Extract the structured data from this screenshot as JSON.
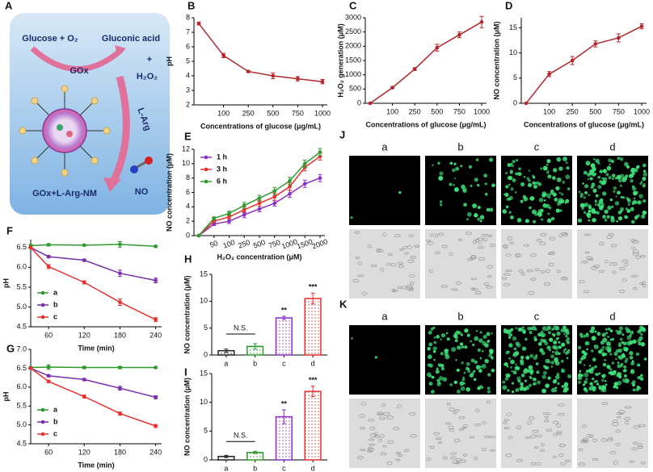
{
  "panel_a": {
    "panel": "A",
    "glucose": "Glucose + O₂",
    "gluconic": "Gluconic acid",
    "enzyme": "GOx",
    "plus": "+",
    "h2o2": "H₂O₂",
    "larg": "L-Arg",
    "nanomotor": "GOx+L-Arg-NM",
    "no": "NO"
  },
  "chart_data": [
    {
      "panel": "B",
      "type": "line",
      "categories": [
        null,
        "100",
        "250",
        "500",
        "750",
        "1000"
      ],
      "series": [
        {
          "color": "#b5262b",
          "values": [
            7.6,
            5.4,
            4.3,
            4.0,
            3.8,
            3.6
          ],
          "errors": [
            0.1,
            0.15,
            0.05,
            0.2,
            0.15,
            0.15
          ]
        }
      ],
      "ylim": [
        2,
        8
      ],
      "yticks": [
        2,
        3,
        4,
        5,
        6,
        7,
        8
      ],
      "xlabel": "Concentrations of glucose (μg/mL)",
      "ylabel": "pH"
    },
    {
      "panel": "C",
      "type": "line",
      "categories": [
        null,
        "100",
        "250",
        "500",
        "750",
        "1000"
      ],
      "series": [
        {
          "color": "#b5262b",
          "values": [
            0,
            550,
            1200,
            1950,
            2400,
            2850
          ],
          "errors": [
            0,
            30,
            50,
            120,
            100,
            200
          ]
        }
      ],
      "ylim": [
        0,
        3000
      ],
      "yticks": [
        0,
        500,
        1000,
        1500,
        2000,
        2500,
        3000
      ],
      "xlabel": "Concentrations of glucose (μg/mL)",
      "ylabel": "H₂O₂ generation (μM)"
    },
    {
      "panel": "D",
      "type": "line",
      "categories": [
        null,
        "100",
        "250",
        "500",
        "750",
        "1000"
      ],
      "series": [
        {
          "color": "#b5262b",
          "values": [
            0,
            5.8,
            8.5,
            11.8,
            13.0,
            15.3
          ],
          "errors": [
            0,
            0.5,
            0.8,
            0.6,
            0.8,
            0.5
          ]
        }
      ],
      "ylim": [
        0,
        17
      ],
      "yticks": [
        0,
        5,
        10,
        15
      ],
      "xlabel": "Concentrations of glucose (μg/mL)",
      "ylabel": "NO concentration (μM)"
    },
    {
      "panel": "E",
      "type": "line",
      "categories": [
        null,
        "50",
        "100",
        "250",
        "500",
        "750",
        "1000",
        "1500",
        "2000"
      ],
      "series": [
        {
          "name": "1 h",
          "color": "#8b2fc9",
          "values": [
            0,
            1.6,
            2.0,
            2.9,
            3.7,
            4.5,
            5.8,
            7.2,
            8.0
          ],
          "errors": [
            0,
            0.2,
            0.3,
            0.4,
            0.4,
            0.4,
            0.5,
            0.5,
            0.5
          ]
        },
        {
          "name": "3 h",
          "color": "#e8312f",
          "values": [
            0,
            2.0,
            2.6,
            3.6,
            4.5,
            5.4,
            6.8,
            9.5,
            11.0
          ],
          "errors": [
            0,
            0.2,
            0.3,
            0.4,
            0.4,
            0.5,
            0.5,
            0.5,
            0.5
          ]
        },
        {
          "name": "6 h",
          "color": "#2e9a2e",
          "values": [
            0,
            2.4,
            3.1,
            4.2,
            5.2,
            6.2,
            7.6,
            10.0,
            11.6
          ],
          "errors": [
            0,
            0.2,
            0.3,
            0.4,
            0.4,
            0.5,
            0.5,
            0.5,
            0.5
          ]
        }
      ],
      "legend": "upper left",
      "ylim": [
        0,
        12
      ],
      "yticks": [
        0,
        2,
        4,
        6,
        8,
        10,
        12
      ],
      "xlabel": "H₂O₂ concentration (μM)",
      "ylabel": "NO concentration (μM)"
    },
    {
      "panel": "F",
      "type": "line",
      "x": [
        30,
        60,
        120,
        180,
        240
      ],
      "series": [
        {
          "name": "a",
          "color": "#2e9a2e",
          "values": [
            6.55,
            6.57,
            6.56,
            6.58,
            6.53
          ],
          "errors": [
            0.03,
            0.03,
            0.02,
            0.07,
            0.02
          ]
        },
        {
          "name": "b",
          "color": "#7a2fb0",
          "values": [
            6.5,
            6.27,
            6.18,
            5.85,
            5.67
          ],
          "errors": [
            0.02,
            0.03,
            0.03,
            0.08,
            0.06
          ]
        },
        {
          "name": "c",
          "color": "#e8312f",
          "values": [
            6.5,
            6.02,
            5.62,
            5.12,
            4.68
          ],
          "errors": [
            0.02,
            0.05,
            0.04,
            0.08,
            0.05
          ]
        }
      ],
      "legend": "lower left",
      "xlim": [
        30,
        250
      ],
      "xticks": [
        60,
        120,
        180,
        240
      ],
      "ylim": [
        4.5,
        6.7
      ],
      "yticks": [
        4.5,
        {
          "value": 5,
          "label": "5.0"
        },
        5.5,
        {
          "value": 6,
          "label": "6.0"
        },
        6.5
      ],
      "xlabel": "Time (min)",
      "ylabel": "pH"
    },
    {
      "panel": "G",
      "type": "line",
      "x": [
        30,
        60,
        120,
        180,
        240
      ],
      "series": [
        {
          "name": "a",
          "color": "#2e9a2e",
          "values": [
            6.52,
            6.53,
            6.52,
            6.52,
            6.52
          ],
          "errors": [
            0.02,
            0.06,
            0.03,
            0.03,
            0.02
          ]
        },
        {
          "name": "b",
          "color": "#7a2fb0",
          "values": [
            6.5,
            6.3,
            6.2,
            5.97,
            5.73
          ],
          "errors": [
            0.02,
            0.03,
            0.03,
            0.05,
            0.04
          ]
        },
        {
          "name": "c",
          "color": "#e8312f",
          "values": [
            6.5,
            6.15,
            5.75,
            5.3,
            4.97
          ],
          "errors": [
            0.02,
            0.03,
            0.04,
            0.04,
            0.04
          ]
        }
      ],
      "legend": "lower left",
      "xlim": [
        30,
        250
      ],
      "xticks": [
        60,
        120,
        180,
        240
      ],
      "ylim": [
        4.5,
        7.0
      ],
      "yticks": [
        4.5,
        {
          "value": 5,
          "label": "5.0"
        },
        5.5,
        {
          "value": 6,
          "label": "6.0"
        },
        6.5,
        {
          "value": 7,
          "label": "7.0"
        }
      ],
      "xlabel": "Time (min)",
      "ylabel": "pH"
    },
    {
      "panel": "H",
      "type": "bar",
      "categories": [
        "a",
        "b",
        "c",
        "d"
      ],
      "values": [
        0.8,
        1.6,
        6.9,
        10.5
      ],
      "errors": [
        0.3,
        0.5,
        0.3,
        1.0
      ],
      "colors": [
        "#222222",
        "#2e9a2e",
        "#8b2fc9",
        "#e8312f"
      ],
      "ylim": [
        0,
        15
      ],
      "yticks": [
        0,
        5,
        10,
        15
      ],
      "ylabel": "NO concentration (μM)",
      "annotations": [
        "N.S.",
        "**",
        "***"
      ]
    },
    {
      "panel": "I",
      "type": "bar",
      "categories": [
        "a",
        "b",
        "c",
        "d"
      ],
      "values": [
        0.6,
        1.3,
        7.5,
        11.9
      ],
      "errors": [
        0.2,
        0.2,
        1.2,
        0.9
      ],
      "colors": [
        "#222222",
        "#2e9a2e",
        "#8b2fc9",
        "#e8312f"
      ],
      "ylim": [
        0,
        15
      ],
      "yticks": [
        0,
        5,
        10,
        15
      ],
      "ylabel": "NO concentration (μM)",
      "annotations": [
        "N.S.",
        "**",
        "***"
      ]
    }
  ],
  "micrographs": [
    {
      "panel": "J",
      "columns": [
        "a",
        "b",
        "c",
        "d"
      ]
    },
    {
      "panel": "K",
      "columns": [
        "a",
        "b",
        "c",
        "d"
      ]
    }
  ]
}
